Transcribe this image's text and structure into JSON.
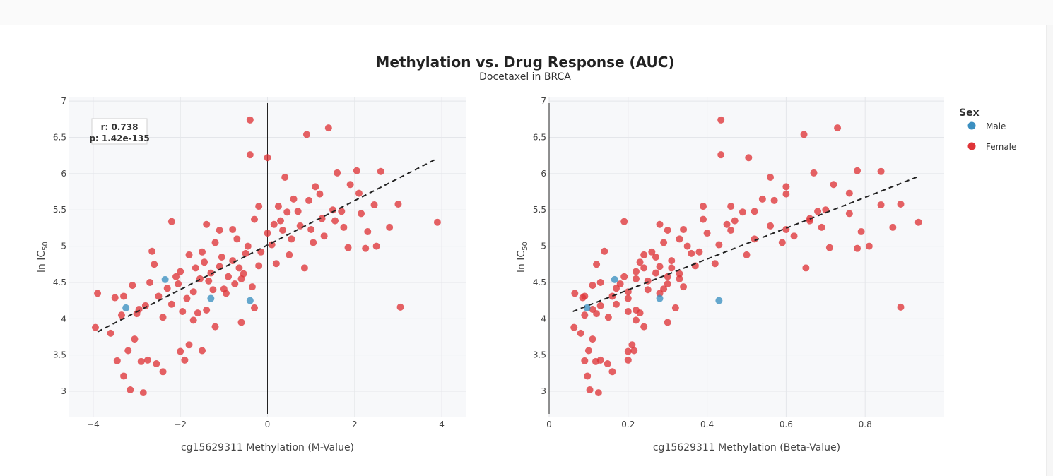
{
  "title": "Methylation vs. Drug Response (AUC)",
  "subtitle": "Docetaxel in BRCA",
  "legend": {
    "title": "Sex",
    "items": [
      {
        "label": "Male",
        "color": "#3b8fc0"
      },
      {
        "label": "Female",
        "color": "#df3438"
      }
    ]
  },
  "stats": {
    "r_text": "r: 0.738",
    "p_text": "p: 1.42e-135"
  },
  "chart_data": [
    {
      "type": "scatter",
      "xlabel": "cg15629311 Methylation (M-Value)",
      "ylabel_main": "ln IC",
      "ylabel_sub": "50",
      "xlim": [
        -4.55,
        4.55
      ],
      "ylim": [
        2.65,
        7.05
      ],
      "xticks": [
        -4,
        -2,
        0,
        2,
        4
      ],
      "xtick_labels": [
        "−4",
        "−2",
        "0",
        "2",
        "4"
      ],
      "yticks": [
        3,
        3.5,
        4,
        4.5,
        5,
        5.5,
        6,
        6.5,
        7
      ],
      "ytick_labels": [
        "3",
        "3.5",
        "4",
        "4.5",
        "5",
        "5.5",
        "6",
        "6.5",
        "7"
      ],
      "zero_line_x": 0,
      "trendline": {
        "x": [
          -3.9,
          3.9
        ],
        "y": [
          3.82,
          6.21
        ]
      },
      "series": [
        {
          "name": "Male",
          "points": [
            [
              -3.25,
              4.15
            ],
            [
              -2.35,
              4.54
            ],
            [
              -0.4,
              4.25
            ],
            [
              -1.3,
              4.28
            ]
          ]
        },
        {
          "name": "Female",
          "points": [
            [
              -0.4,
              6.74
            ],
            [
              1.4,
              6.63
            ],
            [
              0.9,
              6.54
            ],
            [
              -0.4,
              6.26
            ],
            [
              0,
              6.22
            ],
            [
              3.9,
              5.33
            ],
            [
              3.05,
              4.16
            ],
            [
              -3.95,
              3.88
            ],
            [
              -3.9,
              4.35
            ],
            [
              -3.6,
              3.8
            ],
            [
              -3.45,
              3.42
            ],
            [
              -3.3,
              3.21
            ],
            [
              -3.15,
              3.02
            ],
            [
              -2.85,
              2.98
            ],
            [
              -3.05,
              3.72
            ],
            [
              -2.75,
              3.43
            ],
            [
              -2.55,
              3.38
            ],
            [
              -2.4,
              3.27
            ],
            [
              -3.2,
              3.56
            ],
            [
              -2.9,
              3.41
            ],
            [
              2.5,
              5.0
            ],
            [
              2.8,
              5.26
            ],
            [
              2.6,
              6.03
            ],
            [
              2.1,
              5.73
            ],
            [
              1.6,
              6.01
            ],
            [
              2.3,
              5.2
            ],
            [
              3.0,
              5.58
            ],
            [
              2.25,
              4.97
            ],
            [
              1.7,
              5.48
            ],
            [
              1.9,
              5.85
            ],
            [
              0.85,
              4.7
            ],
            [
              1.0,
              5.23
            ],
            [
              1.85,
              4.98
            ],
            [
              2.45,
              5.57
            ],
            [
              0.4,
              5.95
            ],
            [
              -2.2,
              5.34
            ],
            [
              -2.0,
              3.55
            ],
            [
              -1.5,
              3.56
            ],
            [
              -1.9,
              3.43
            ],
            [
              -1.8,
              3.64
            ],
            [
              -1.2,
              3.89
            ],
            [
              -0.6,
              3.95
            ],
            [
              -0.3,
              4.15
            ],
            [
              0.2,
              4.76
            ],
            [
              1.25,
              5.38
            ],
            [
              -1.1,
              5.22
            ],
            [
              -0.7,
              5.1
            ],
            [
              -1.4,
              5.3
            ],
            [
              0.6,
              5.65
            ],
            [
              1.1,
              5.82
            ],
            [
              -0.2,
              5.55
            ],
            [
              0.3,
              5.35
            ],
            [
              1.5,
              5.5
            ],
            [
              2.05,
              6.04
            ],
            [
              -2.6,
              4.75
            ],
            [
              -2.65,
              4.93
            ],
            [
              -2.2,
              4.2
            ],
            [
              -3.3,
              4.31
            ],
            [
              -3.5,
              4.29
            ],
            [
              -3.1,
              4.46
            ],
            [
              -1.6,
              4.08
            ],
            [
              -1.0,
              4.41
            ],
            [
              -0.8,
              4.8
            ],
            [
              0.1,
              5.02
            ],
            [
              0.5,
              4.88
            ],
            [
              0.75,
              5.28
            ],
            [
              1.3,
              5.14
            ],
            [
              1.75,
              5.26
            ],
            [
              -2.0,
              4.65
            ],
            [
              -1.3,
              4.63
            ],
            [
              -0.9,
              4.58
            ],
            [
              -0.5,
              4.9
            ],
            [
              0.0,
              5.18
            ],
            [
              0.45,
              5.47
            ],
            [
              0.95,
              5.63
            ],
            [
              -1.7,
              4.37
            ],
            [
              -1.4,
              4.12
            ],
            [
              -2.4,
              4.02
            ],
            [
              -2.8,
              4.18
            ],
            [
              -3.0,
              4.07
            ],
            [
              -2.5,
              4.31
            ],
            [
              -1.1,
              4.72
            ],
            [
              -0.6,
              4.55
            ],
            [
              -0.2,
              4.73
            ],
            [
              0.35,
              5.22
            ],
            [
              0.7,
              5.48
            ],
            [
              1.2,
              5.72
            ],
            [
              -1.8,
              4.88
            ],
            [
              -1.5,
              4.92
            ],
            [
              -1.2,
              5.05
            ],
            [
              -0.8,
              5.23
            ],
            [
              -0.3,
              5.37
            ],
            [
              0.25,
              5.55
            ],
            [
              -2.3,
              4.42
            ],
            [
              -2.1,
              4.58
            ],
            [
              -1.65,
              4.7
            ],
            [
              -1.35,
              4.52
            ],
            [
              -0.95,
              4.35
            ],
            [
              -0.55,
              4.62
            ],
            [
              -0.15,
              4.92
            ],
            [
              -1.55,
              4.55
            ],
            [
              -1.25,
              4.4
            ],
            [
              -1.05,
              4.85
            ],
            [
              -0.75,
              4.48
            ],
            [
              -0.45,
              5.0
            ],
            [
              -1.85,
              4.28
            ],
            [
              -2.05,
              4.48
            ],
            [
              -1.45,
              4.78
            ],
            [
              -0.65,
              4.7
            ],
            [
              -0.35,
              4.44
            ],
            [
              1.05,
              5.05
            ],
            [
              1.55,
              5.35
            ],
            [
              2.15,
              5.45
            ],
            [
              0.55,
              5.1
            ],
            [
              0.15,
              5.3
            ],
            [
              -2.7,
              4.5
            ],
            [
              -2.95,
              4.13
            ],
            [
              -3.35,
              4.05
            ],
            [
              -1.95,
              4.1
            ],
            [
              -1.7,
              3.98
            ]
          ]
        }
      ]
    },
    {
      "type": "scatter",
      "xlabel": "cg15629311 Methylation (Beta-Value)",
      "ylabel_main": "ln IC",
      "ylabel_sub": "50",
      "xlim": [
        0,
        1.0
      ],
      "ylim": [
        2.65,
        7.05
      ],
      "xticks": [
        0,
        0.2,
        0.4,
        0.6,
        0.8
      ],
      "xtick_labels": [
        "0",
        "0.2",
        "0.4",
        "0.6",
        "0.8"
      ],
      "yticks": [
        3,
        3.5,
        4,
        4.5,
        5,
        5.5,
        6,
        6.5,
        7
      ],
      "ytick_labels": [
        "3",
        "3.5",
        "4",
        "4.5",
        "5",
        "5.5",
        "6",
        "6.5",
        "7"
      ],
      "zero_line_x": 0,
      "trendline": {
        "x": [
          0.06,
          0.93
        ],
        "y": [
          4.1,
          5.95
        ]
      },
      "series": [
        {
          "name": "Male",
          "points": [
            [
              0.096,
              4.15
            ],
            [
              0.166,
              4.54
            ],
            [
              0.43,
              4.25
            ],
            [
              0.28,
              4.28
            ]
          ]
        },
        {
          "name": "Female",
          "points": [
            [
              0.435,
              6.74
            ],
            [
              0.73,
              6.63
            ],
            [
              0.645,
              6.54
            ],
            [
              0.435,
              6.26
            ],
            [
              0.505,
              6.22
            ],
            [
              0.935,
              5.33
            ],
            [
              0.89,
              4.16
            ],
            [
              0.063,
              3.88
            ],
            [
              0.065,
              4.35
            ],
            [
              0.08,
              3.8
            ],
            [
              0.09,
              3.42
            ],
            [
              0.097,
              3.21
            ],
            [
              0.103,
              3.02
            ],
            [
              0.125,
              2.98
            ],
            [
              0.11,
              3.72
            ],
            [
              0.13,
              3.43
            ],
            [
              0.148,
              3.38
            ],
            [
              0.16,
              3.27
            ],
            [
              0.1,
              3.56
            ],
            [
              0.118,
              3.41
            ],
            [
              0.81,
              5.0
            ],
            [
              0.87,
              5.26
            ],
            [
              0.84,
              6.03
            ],
            [
              0.76,
              5.73
            ],
            [
              0.67,
              6.01
            ],
            [
              0.79,
              5.2
            ],
            [
              0.89,
              5.58
            ],
            [
              0.78,
              4.97
            ],
            [
              0.68,
              5.48
            ],
            [
              0.72,
              5.85
            ],
            [
              0.65,
              4.7
            ],
            [
              0.6,
              5.23
            ],
            [
              0.71,
              4.98
            ],
            [
              0.84,
              5.57
            ],
            [
              0.56,
              5.95
            ],
            [
              0.19,
              5.34
            ],
            [
              0.2,
              3.55
            ],
            [
              0.215,
              3.56
            ],
            [
              0.2,
              3.43
            ],
            [
              0.21,
              3.64
            ],
            [
              0.24,
              3.89
            ],
            [
              0.3,
              3.95
            ],
            [
              0.32,
              4.15
            ],
            [
              0.42,
              4.76
            ],
            [
              0.66,
              5.38
            ],
            [
              0.3,
              5.22
            ],
            [
              0.33,
              5.1
            ],
            [
              0.28,
              5.3
            ],
            [
              0.54,
              5.65
            ],
            [
              0.6,
              5.82
            ],
            [
              0.39,
              5.55
            ],
            [
              0.47,
              5.35
            ],
            [
              0.7,
              5.5
            ],
            [
              0.78,
              6.04
            ],
            [
              0.12,
              4.75
            ],
            [
              0.14,
              4.93
            ],
            [
              0.17,
              4.2
            ],
            [
              0.09,
              4.31
            ],
            [
              0.085,
              4.29
            ],
            [
              0.11,
              4.46
            ],
            [
              0.23,
              4.08
            ],
            [
              0.29,
              4.41
            ],
            [
              0.31,
              4.8
            ],
            [
              0.43,
              5.02
            ],
            [
              0.5,
              4.88
            ],
            [
              0.56,
              5.28
            ],
            [
              0.62,
              5.14
            ],
            [
              0.69,
              5.26
            ],
            [
              0.22,
              4.65
            ],
            [
              0.27,
              4.63
            ],
            [
              0.3,
              4.58
            ],
            [
              0.36,
              4.9
            ],
            [
              0.4,
              5.18
            ],
            [
              0.49,
              5.47
            ],
            [
              0.57,
              5.63
            ],
            [
              0.2,
              4.37
            ],
            [
              0.22,
              4.12
            ],
            [
              0.15,
              4.02
            ],
            [
              0.13,
              4.18
            ],
            [
              0.12,
              4.07
            ],
            [
              0.16,
              4.31
            ],
            [
              0.28,
              4.72
            ],
            [
              0.33,
              4.55
            ],
            [
              0.37,
              4.73
            ],
            [
              0.46,
              5.22
            ],
            [
              0.52,
              5.48
            ],
            [
              0.6,
              5.72
            ],
            [
              0.24,
              4.88
            ],
            [
              0.26,
              4.92
            ],
            [
              0.29,
              5.05
            ],
            [
              0.34,
              5.23
            ],
            [
              0.39,
              5.37
            ],
            [
              0.46,
              5.55
            ],
            [
              0.17,
              4.42
            ],
            [
              0.19,
              4.58
            ],
            [
              0.24,
              4.7
            ],
            [
              0.25,
              4.52
            ],
            [
              0.28,
              4.35
            ],
            [
              0.33,
              4.62
            ],
            [
              0.38,
              4.92
            ],
            [
              0.22,
              4.55
            ],
            [
              0.25,
              4.4
            ],
            [
              0.27,
              4.85
            ],
            [
              0.3,
              4.48
            ],
            [
              0.35,
              5.0
            ],
            [
              0.2,
              4.28
            ],
            [
              0.18,
              4.48
            ],
            [
              0.23,
              4.78
            ],
            [
              0.31,
              4.7
            ],
            [
              0.34,
              4.44
            ],
            [
              0.59,
              5.05
            ],
            [
              0.66,
              5.35
            ],
            [
              0.76,
              5.45
            ],
            [
              0.52,
              5.1
            ],
            [
              0.45,
              5.3
            ],
            [
              0.13,
              4.5
            ],
            [
              0.11,
              4.13
            ],
            [
              0.09,
              4.05
            ],
            [
              0.2,
              4.1
            ],
            [
              0.22,
              3.98
            ]
          ]
        }
      ]
    }
  ]
}
